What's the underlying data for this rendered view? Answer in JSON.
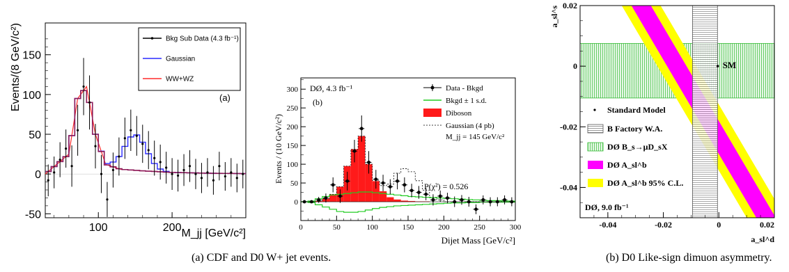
{
  "captions": {
    "left": "(a) CDF and D0 W+ jet events.",
    "right": "(b) D0 Like-sign dimuon asymmetry."
  },
  "chart_data": [
    {
      "type": "line",
      "panel_label": "(a)",
      "ylabel": "Events/(8 GeV/c²)",
      "xlabel": "M_jj [GeV/c²]",
      "xlim": [
        28,
        300
      ],
      "ylim": [
        -55,
        190
      ],
      "xticks": [
        100,
        200
      ],
      "yticks": [
        -50,
        0,
        50,
        100,
        150
      ],
      "legend": [
        "Bkg Sub Data (4.3 fb⁻¹)",
        "Gaussian",
        "WW+WZ"
      ],
      "colors": {
        "data": "#000000",
        "gaussian": "#2a2aff",
        "diboson": "#ff2a2a",
        "sum": "#8b1a5a"
      },
      "bin_edges": [
        28,
        36,
        44,
        52,
        60,
        68,
        76,
        84,
        92,
        100,
        108,
        116,
        124,
        132,
        140,
        148,
        156,
        164,
        172,
        180,
        188,
        196,
        204,
        212,
        220,
        228,
        236,
        244,
        252,
        260,
        268,
        276,
        284,
        292,
        300
      ],
      "diboson_curve": {
        "x": [
          28,
          60,
          72,
          84,
          96,
          110,
          130,
          160,
          200,
          250,
          300
        ],
        "y": [
          0,
          25,
          95,
          110,
          50,
          12,
          6,
          4,
          2,
          1,
          0.5
        ]
      },
      "gaussian_mean": 150,
      "gaussian_sigma": 15,
      "gaussian_amplitude": 45,
      "data_points": {
        "x": [
          32,
          40,
          48,
          56,
          64,
          72,
          80,
          88,
          96,
          104,
          112,
          120,
          128,
          136,
          144,
          152,
          160,
          168,
          176,
          184,
          192,
          200,
          208,
          216,
          224,
          232,
          240,
          248,
          256,
          264,
          272,
          280,
          288,
          296
        ],
        "y": [
          -8,
          2,
          18,
          32,
          10,
          55,
          110,
          90,
          35,
          0,
          -32,
          5,
          22,
          45,
          55,
          48,
          38,
          30,
          20,
          15,
          8,
          0,
          -2,
          5,
          10,
          0,
          -5,
          2,
          -8,
          10,
          -3,
          2,
          -5,
          0
        ],
        "err": [
          20,
          20,
          22,
          24,
          26,
          32,
          36,
          34,
          28,
          24,
          22,
          22,
          24,
          26,
          26,
          25,
          24,
          24,
          22,
          22,
          20,
          20,
          20,
          20,
          20,
          19,
          19,
          18,
          18,
          18,
          18,
          18,
          18,
          18
        ]
      }
    },
    {
      "type": "bar",
      "annotation": "DØ, 4.3 fb⁻¹",
      "panel_label": "(b)",
      "ylabel": "Events / (10 GeV/c²)",
      "xlabel": "Dijet Mass [GeV/c²]",
      "xlim": [
        0,
        300
      ],
      "ylim": [
        -50,
        330
      ],
      "xticks": [
        0,
        50,
        100,
        150,
        200,
        250,
        300
      ],
      "yticks": [
        0,
        50,
        100,
        150,
        200,
        250,
        300
      ],
      "legend": [
        "Data - Bkgd",
        "Bkgd ± 1 s.d.",
        "Diboson",
        "Gaussian (4 pb)"
      ],
      "mass_label": "M_jj = 145 GeV/c²",
      "chi2_label": "P(χ²) = 0.526",
      "colors": {
        "data": "#000000",
        "band": "#22cc22",
        "diboson": "#ff1a1a",
        "gaussian": "#000000"
      },
      "bin_edges": [
        0,
        10,
        20,
        30,
        40,
        50,
        60,
        70,
        80,
        90,
        100,
        110,
        120,
        130,
        140,
        150,
        160,
        170,
        180,
        190,
        200,
        210,
        220,
        230,
        240,
        250,
        260,
        270,
        280,
        290,
        300
      ],
      "diboson_values": [
        0,
        0,
        2,
        8,
        20,
        40,
        95,
        140,
        175,
        100,
        55,
        28,
        12,
        6,
        3,
        2,
        1,
        1,
        0,
        0,
        0,
        0,
        0,
        0,
        0,
        0,
        0,
        0,
        0,
        0
      ],
      "gaussian_values": [
        0,
        0,
        0,
        0,
        0,
        0,
        0,
        0,
        0,
        0,
        2,
        15,
        35,
        70,
        85,
        78,
        55,
        30,
        12,
        5,
        0,
        0,
        0,
        0,
        0,
        0,
        0,
        0,
        0,
        0
      ],
      "band_upper": [
        0,
        2,
        8,
        14,
        18,
        20,
        22,
        24,
        26,
        26,
        24,
        22,
        20,
        18,
        16,
        14,
        13,
        12,
        11,
        10,
        9,
        8,
        7,
        6,
        5,
        4,
        3,
        3,
        2,
        2
      ],
      "band_lower": [
        0,
        -2,
        -8,
        -14,
        -20,
        -26,
        -28,
        -28,
        -26,
        -22,
        -18,
        -15,
        -13,
        -11,
        -10,
        -9,
        -8,
        -7,
        -6,
        -5,
        -4,
        -3,
        -3,
        -2,
        -2,
        -1,
        -1,
        -1,
        -1,
        -1
      ],
      "data_points": {
        "x": [
          5,
          15,
          25,
          35,
          45,
          55,
          65,
          75,
          85,
          95,
          105,
          115,
          125,
          135,
          145,
          155,
          165,
          175,
          185,
          195,
          205,
          215,
          225,
          235,
          245,
          255,
          265,
          275,
          285,
          295
        ],
        "y": [
          0,
          0,
          5,
          10,
          45,
          15,
          55,
          135,
          195,
          105,
          60,
          50,
          40,
          55,
          45,
          30,
          25,
          20,
          5,
          15,
          10,
          0,
          5,
          0,
          -20,
          5,
          0,
          0,
          5,
          0
        ],
        "err": [
          2,
          3,
          8,
          12,
          20,
          18,
          25,
          30,
          35,
          30,
          25,
          22,
          20,
          22,
          20,
          18,
          17,
          16,
          15,
          15,
          14,
          14,
          13,
          13,
          13,
          12,
          12,
          12,
          12,
          12
        ]
      }
    },
    {
      "type": "area",
      "ylabel": "a_sl^s",
      "xlabel": "a_sl^d",
      "xlim": [
        -0.05,
        0.02
      ],
      "ylim": [
        -0.05,
        0.02
      ],
      "xticks": [
        -0.04,
        -0.02,
        0,
        0.02
      ],
      "yticks": [
        -0.04,
        -0.02,
        0,
        0.02
      ],
      "annotation": "DØ, 9.0 fb⁻¹",
      "sm_label": "SM",
      "legend": [
        "Standard Model",
        "B Factory W.A.",
        "DØ B_s→μD_sX",
        "DØ A_sl^b",
        "DØ A_sl^b 95% C.L."
      ],
      "colors": {
        "bfactory": "#555555",
        "dsmu": "#33bb33",
        "asl_inner": "#ff00ff",
        "asl_outer": "#ffff00"
      },
      "standard_model": {
        "x": -0.0004,
        "y": 2e-05
      },
      "b_factory": {
        "x_range": [
          -0.0095,
          -0.0005
        ]
      },
      "bs_mu_ds_x": {
        "y_range": [
          -0.0105,
          0.0075
        ]
      },
      "asl_band": {
        "inner_top": [
          [
            -0.0315,
            0.02
          ],
          [
            -0.0245,
            0.02
          ]
        ],
        "inner_bottom": [
          [
            0.0135,
            -0.05
          ],
          [
            0.0205,
            -0.05
          ]
        ],
        "outer_top": [
          [
            -0.035,
            0.02
          ],
          [
            -0.021,
            0.02
          ]
        ],
        "outer_bottom": [
          [
            0.01,
            -0.05
          ],
          [
            0.024,
            -0.05
          ]
        ]
      }
    }
  ]
}
